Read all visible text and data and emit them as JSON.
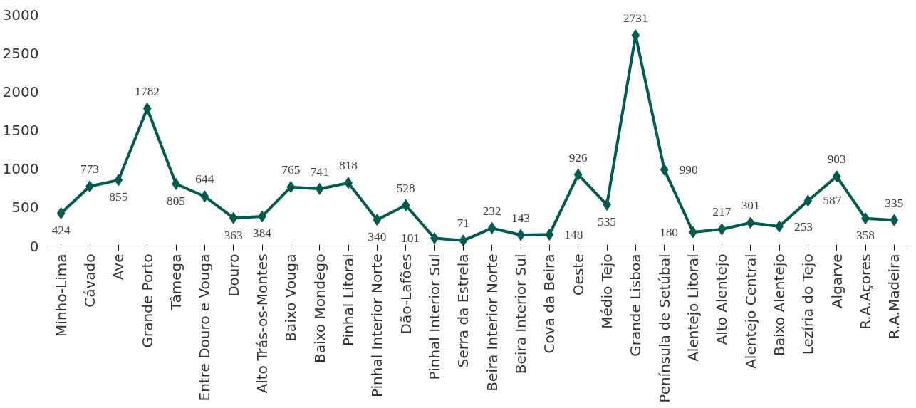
{
  "chart_data": {
    "type": "line",
    "categories": [
      "Minho-Lima",
      "Cávado",
      "Ave",
      "Grande Porto",
      "Tâmega",
      "Entre Douro e Vouga",
      "Douro",
      "Alto Trás-os-Montes",
      "Baixo Vouga",
      "Baixo Mondego",
      "Pinhal Litoral",
      "Pinhal Interior Norte",
      "Dão-Lafões",
      "Pinhal Interior Sul",
      "Serra da Estrela",
      "Beira Interior Norte",
      "Beira Interior Sul",
      "Cova da Beira",
      "Oeste",
      "Médio Tejo",
      "Grande Lisboa",
      "Península de Setúbal",
      "Alentejo Litoral",
      "Alto Alentejo",
      "Alentejo Central",
      "Baixo Alentejo",
      "Lezíria do Tejo",
      "Algarve",
      "R.A.Açores",
      "R.A.Madeira"
    ],
    "series": [
      {
        "color": "#005a4f",
        "values": [
          424,
          773,
          855,
          1782,
          805,
          644,
          363,
          384,
          765,
          741,
          818,
          340,
          528,
          101,
          71,
          232,
          143,
          148,
          926,
          535,
          2731,
          990,
          180,
          217,
          301,
          253,
          587,
          903,
          358,
          335
        ]
      }
    ],
    "ylim": [
      0,
      3000
    ],
    "yticks": [
      0,
      500,
      1000,
      1500,
      2000,
      2500,
      3000
    ],
    "grid": false,
    "marker": "diamond",
    "line_style": "solid",
    "data_labels": true
  }
}
